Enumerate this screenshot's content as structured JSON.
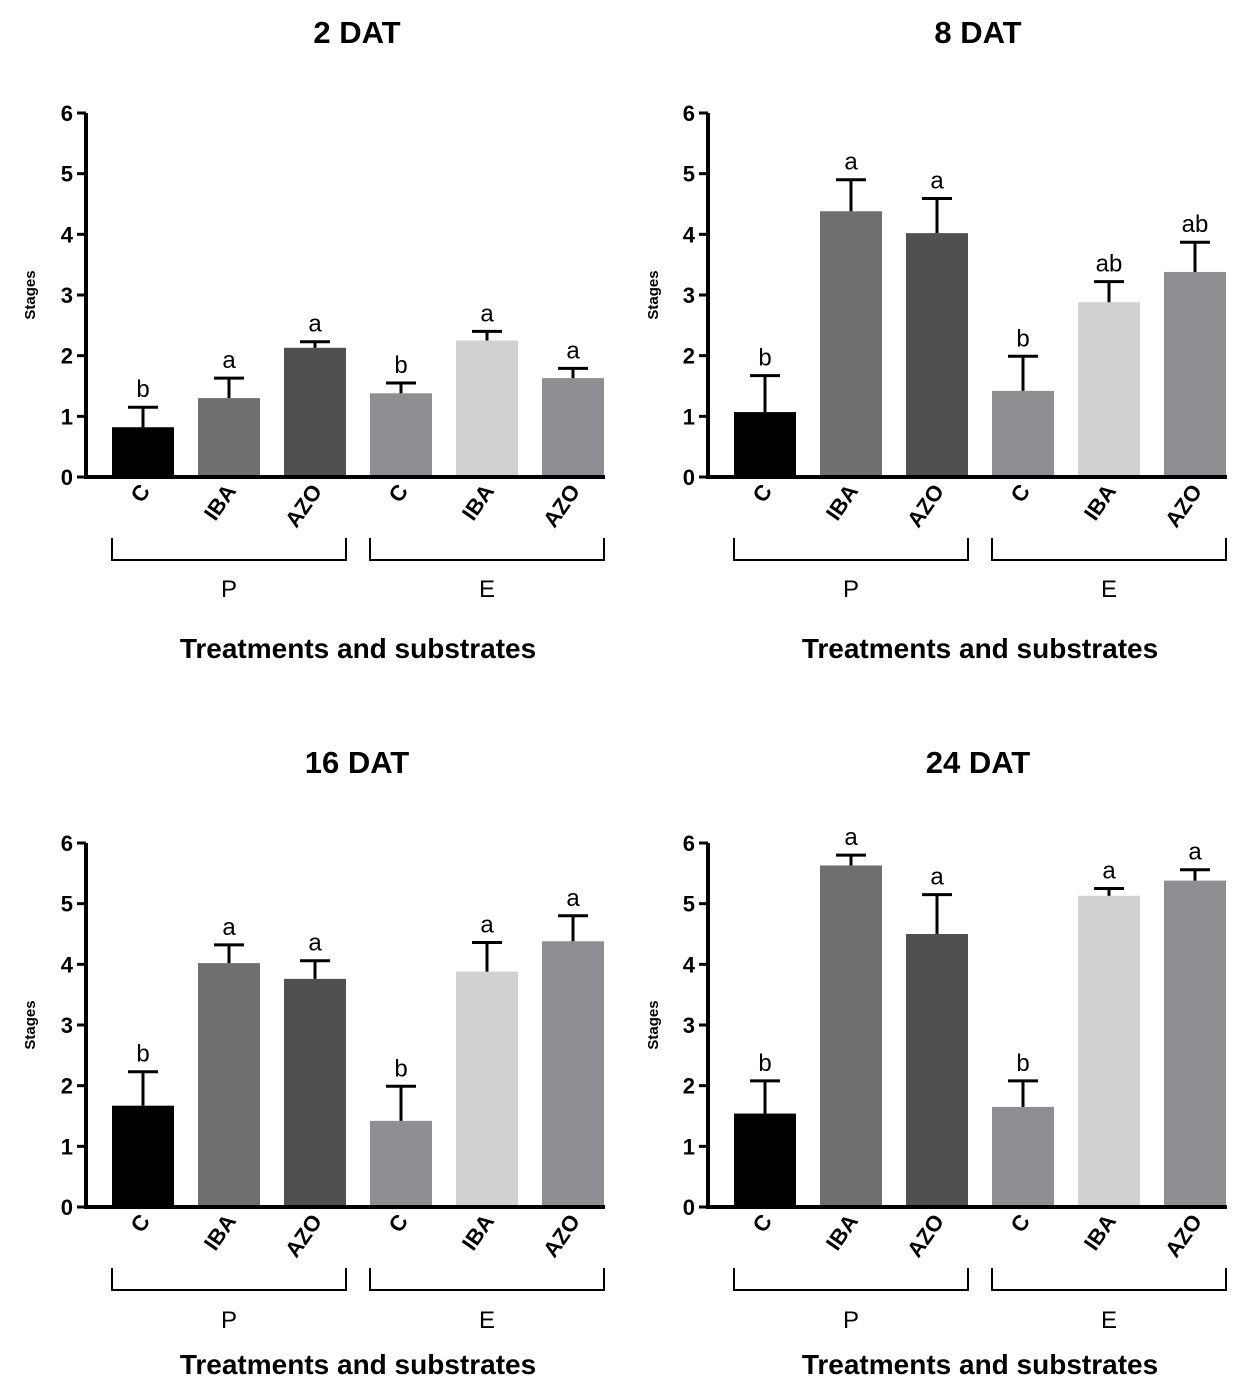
{
  "chart_data": [
    {
      "type": "bar",
      "title": "2 DAT",
      "ylabel": "Stages",
      "xlabel": "Treatments and substrates",
      "ylim": [
        0,
        6
      ],
      "yticks": [
        "0",
        "1",
        "2",
        "3",
        "4",
        "5",
        "6"
      ],
      "categories": [
        "C",
        "IBA",
        "AZO",
        "C",
        "IBA",
        "AZO"
      ],
      "groups": [
        {
          "label": "P",
          "members": [
            0,
            1,
            2
          ]
        },
        {
          "label": "E",
          "members": [
            3,
            4,
            5
          ]
        }
      ],
      "values": [
        0.82,
        1.3,
        2.13,
        1.38,
        2.25,
        1.63
      ],
      "errors": [
        0.33,
        0.33,
        0.1,
        0.17,
        0.15,
        0.16
      ],
      "significance": [
        "b",
        "a",
        "a",
        "b",
        "a",
        "a"
      ],
      "colors": [
        "#000000",
        "#6f6f6f",
        "#505050",
        "#8e8e93",
        "#d1d1d1",
        "#8e8e93"
      ]
    },
    {
      "type": "bar",
      "title": "8 DAT",
      "ylabel": "Stages",
      "xlabel": "Treatments and substrates",
      "ylim": [
        0,
        6
      ],
      "yticks": [
        "0",
        "1",
        "2",
        "3",
        "4",
        "5",
        "6"
      ],
      "categories": [
        "C",
        "IBA",
        "AZO",
        "C",
        "IBA",
        "AZO"
      ],
      "groups": [
        {
          "label": "P",
          "members": [
            0,
            1,
            2
          ]
        },
        {
          "label": "E",
          "members": [
            3,
            4,
            5
          ]
        }
      ],
      "values": [
        1.07,
        4.38,
        4.02,
        1.42,
        2.88,
        3.38
      ],
      "errors": [
        0.6,
        0.52,
        0.57,
        0.57,
        0.34,
        0.49
      ],
      "significance": [
        "b",
        "a",
        "a",
        "b",
        "ab",
        "ab"
      ],
      "colors": [
        "#000000",
        "#6f6f6f",
        "#505050",
        "#8e8e93",
        "#d1d1d1",
        "#8e8e93"
      ]
    },
    {
      "type": "bar",
      "title": "16 DAT",
      "ylabel": "Stages",
      "xlabel": "Treatments and substrates",
      "ylim": [
        0,
        6
      ],
      "yticks": [
        "0",
        "1",
        "2",
        "3",
        "4",
        "5",
        "6"
      ],
      "categories": [
        "C",
        "IBA",
        "AZO",
        "C",
        "IBA",
        "AZO"
      ],
      "groups": [
        {
          "label": "P",
          "members": [
            0,
            1,
            2
          ]
        },
        {
          "label": "E",
          "members": [
            3,
            4,
            5
          ]
        }
      ],
      "values": [
        1.67,
        4.02,
        3.76,
        1.42,
        3.88,
        4.38
      ],
      "errors": [
        0.56,
        0.3,
        0.3,
        0.57,
        0.48,
        0.42
      ],
      "significance": [
        "b",
        "a",
        "a",
        "b",
        "a",
        "a"
      ],
      "colors": [
        "#000000",
        "#6f6f6f",
        "#505050",
        "#8e8e93",
        "#d1d1d1",
        "#8e8e93"
      ]
    },
    {
      "type": "bar",
      "title": "24 DAT",
      "ylabel": "Stages",
      "xlabel": "Treatments and substrates",
      "ylim": [
        0,
        6
      ],
      "yticks": [
        "0",
        "1",
        "2",
        "3",
        "4",
        "5",
        "6"
      ],
      "categories": [
        "C",
        "IBA",
        "AZO",
        "C",
        "IBA",
        "AZO"
      ],
      "groups": [
        {
          "label": "P",
          "members": [
            0,
            1,
            2
          ]
        },
        {
          "label": "E",
          "members": [
            3,
            4,
            5
          ]
        }
      ],
      "values": [
        1.54,
        5.63,
        4.5,
        1.65,
        5.13,
        5.38
      ],
      "errors": [
        0.54,
        0.17,
        0.65,
        0.43,
        0.12,
        0.18
      ],
      "significance": [
        "b",
        "a",
        "a",
        "b",
        "a",
        "a"
      ],
      "colors": [
        "#000000",
        "#6f6f6f",
        "#505050",
        "#8e8e93",
        "#d1d1d1",
        "#8e8e93"
      ]
    }
  ]
}
